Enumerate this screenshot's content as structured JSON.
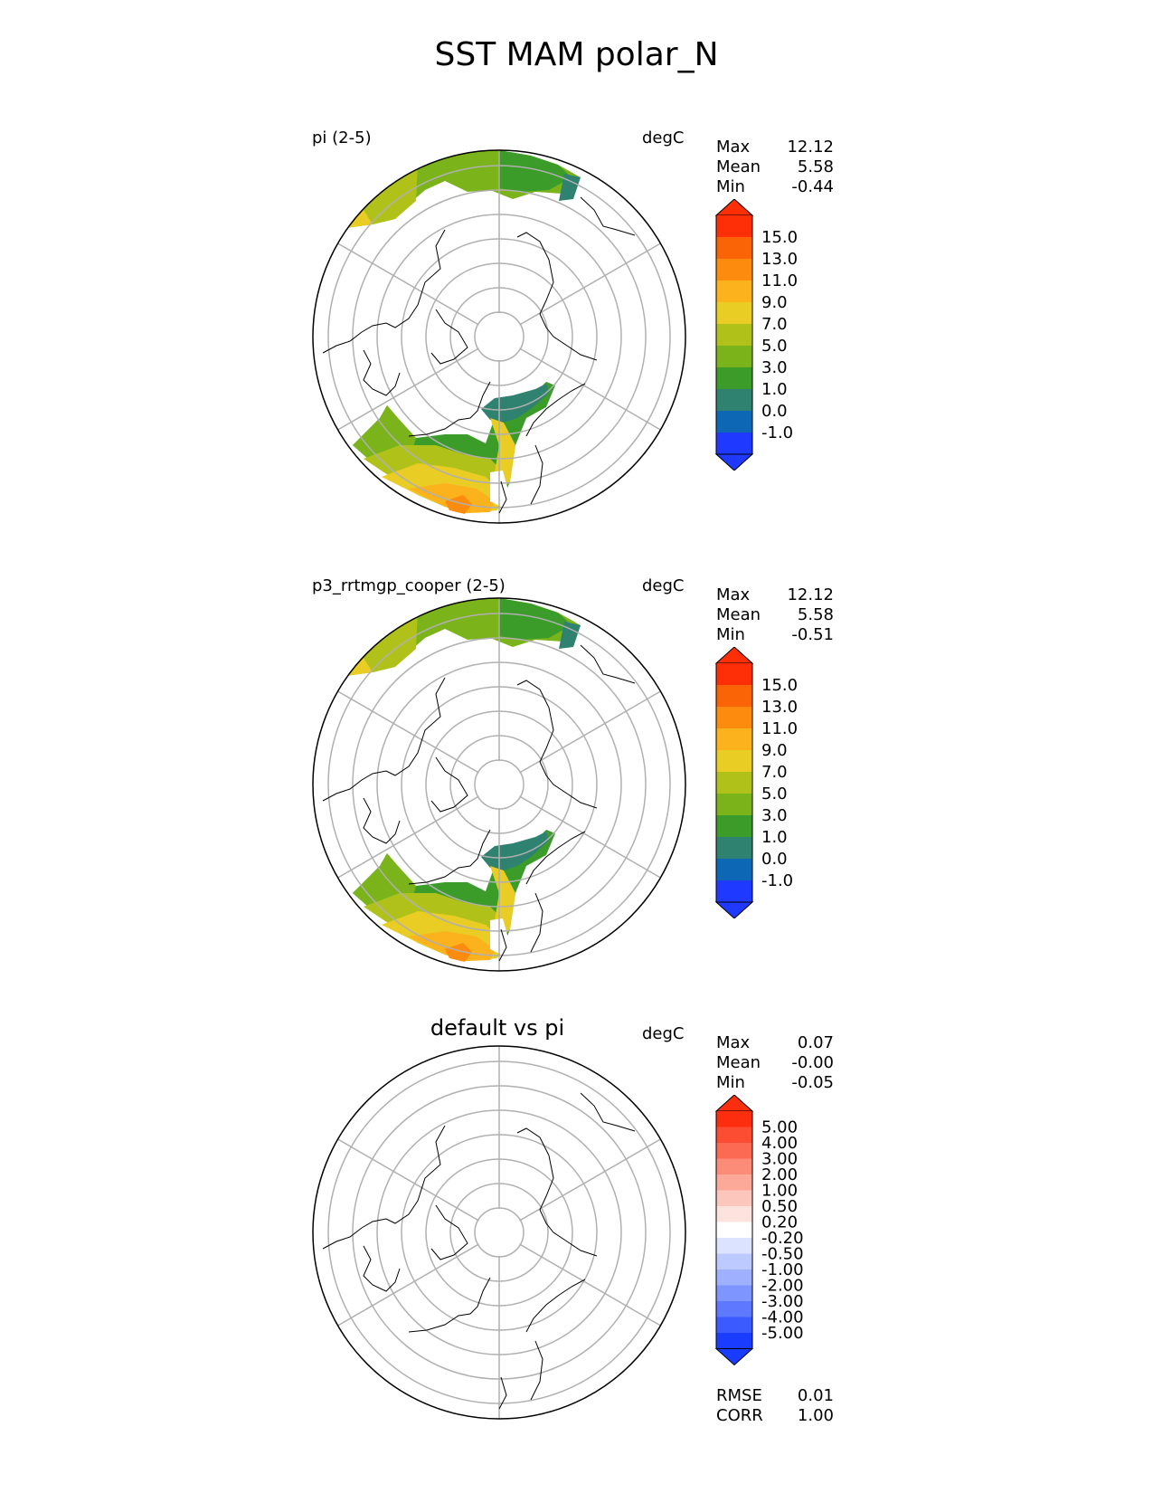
{
  "title": "SST MAM polar_N",
  "colors": {
    "ocean_abs": [
      "#1f39ff",
      "#0e67b4",
      "#2f8270",
      "#3b9c2a",
      "#7bb31a",
      "#b0c21a",
      "#e9cc24",
      "#fbb21d",
      "#fd8b0e",
      "#fb6406",
      "#fe2f07"
    ],
    "diff": [
      "#1a3cff",
      "#3b5bff",
      "#5e78ff",
      "#7e94ff",
      "#9fb0ff",
      "#bccaff",
      "#dce3ff",
      "#ffffff",
      "#fde2dd",
      "#fcc6bc",
      "#fca99a",
      "#fc8b78",
      "#fc6a53",
      "#fc4d33",
      "#fd2e10"
    ]
  },
  "panels": [
    {
      "title": "pi (2-5)",
      "units": "degC",
      "stats": [
        {
          "label": "Max",
          "value": "12.12"
        },
        {
          "label": "Mean",
          "value": "5.58"
        },
        {
          "label": "Min",
          "value": "-0.44"
        }
      ],
      "cbar_ticks": [
        "15.0",
        "13.0",
        "11.0",
        "9.0",
        "7.0",
        "5.0",
        "3.0",
        "1.0",
        "0.0",
        "-1.0"
      ]
    },
    {
      "title": "p3_rrtmgp_cooper (2-5)",
      "units": "degC",
      "stats": [
        {
          "label": "Max",
          "value": "12.12"
        },
        {
          "label": "Mean",
          "value": "5.58"
        },
        {
          "label": "Min",
          "value": "-0.51"
        }
      ],
      "cbar_ticks": [
        "15.0",
        "13.0",
        "11.0",
        "9.0",
        "7.0",
        "5.0",
        "3.0",
        "1.0",
        "0.0",
        "-1.0"
      ]
    },
    {
      "title": "default vs pi",
      "units": "degC",
      "stats": [
        {
          "label": "Max",
          "value": "0.07"
        },
        {
          "label": "Mean",
          "value": "-0.00"
        },
        {
          "label": "Min",
          "value": "-0.05"
        }
      ],
      "cbar_ticks": [
        "5.00",
        "4.00",
        "3.00",
        "2.00",
        "1.00",
        "0.50",
        "0.20",
        "-0.20",
        "-0.50",
        "-1.00",
        "-2.00",
        "-3.00",
        "-4.00",
        "-5.00"
      ],
      "bottom_stats": [
        {
          "label": "RMSE",
          "value": "0.01"
        },
        {
          "label": "CORR",
          "value": "1.00"
        }
      ]
    }
  ]
}
